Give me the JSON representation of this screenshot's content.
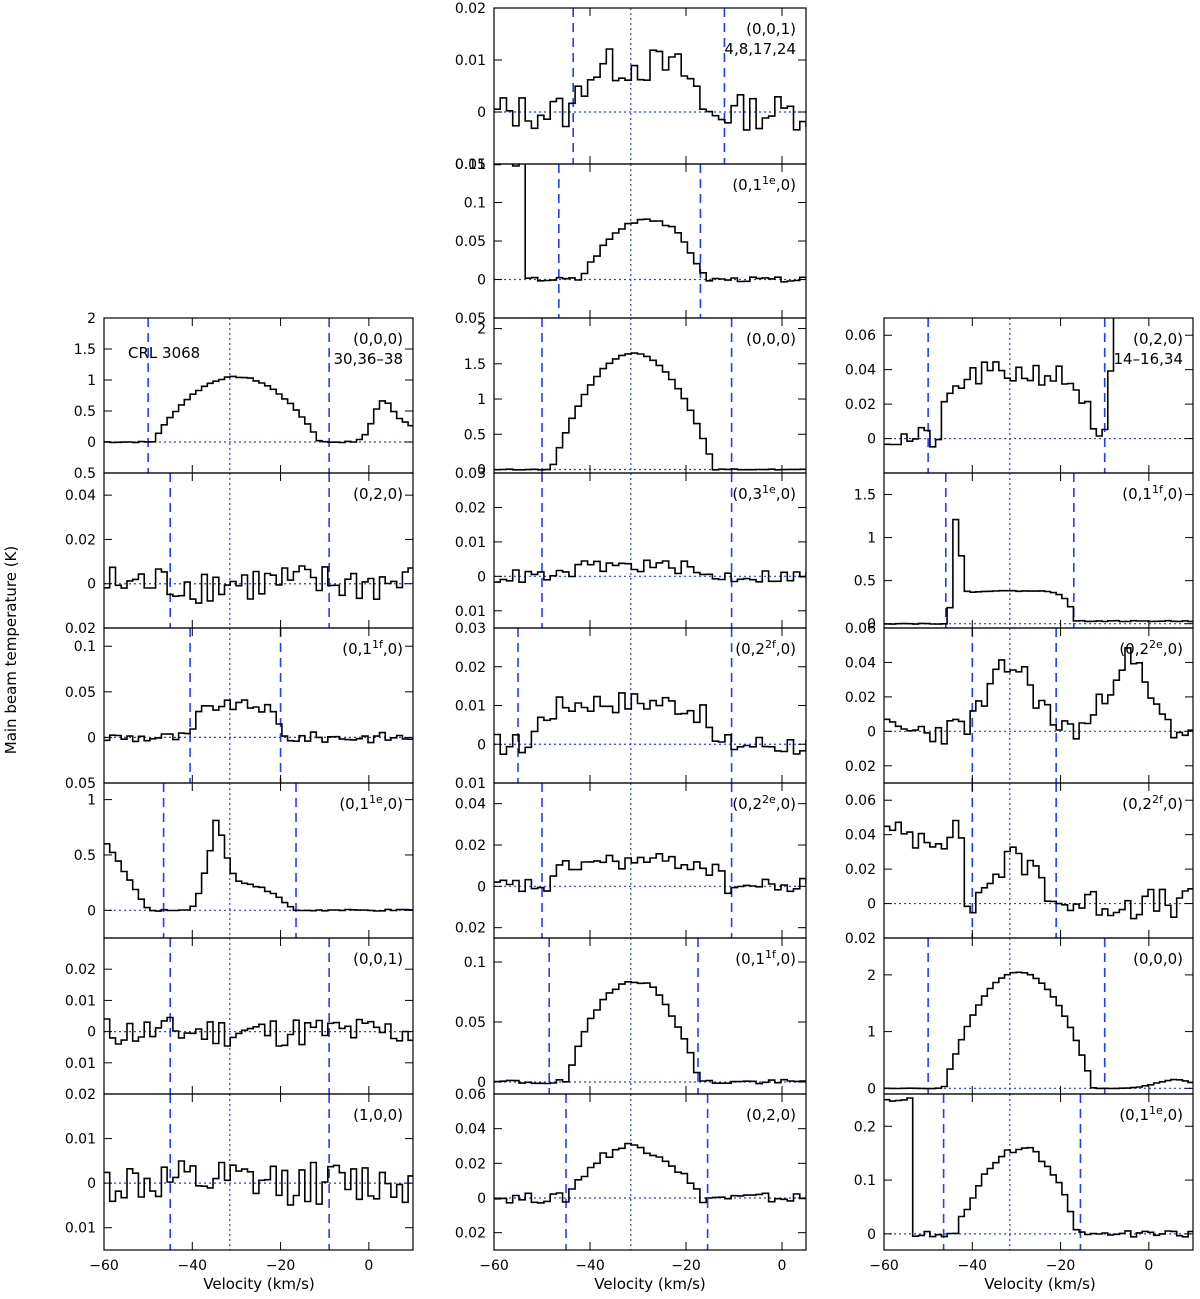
{
  "figure": {
    "ylabel": "Main beam temperature (K)",
    "xlabel": "Velocity (km/s)"
  },
  "colors": {
    "marker": "#1f3fff",
    "spectrum": "#000000"
  },
  "chart_data": [
    {
      "type": "line",
      "column": 1,
      "row": 0,
      "label": "(0,0,0)",
      "sublabel": "30,36–38",
      "source": "CRL 3068",
      "xlim": [
        -60,
        10
      ],
      "ylim": [
        -0.5,
        2
      ],
      "yticks": [
        -0.5,
        0,
        0.5,
        1,
        1.5,
        2
      ],
      "xticks": [],
      "dashed_x": [
        -50,
        -9
      ],
      "dotted_x": -31.5,
      "shape": {
        "kind": "para",
        "center": -30,
        "halfwidth": 19,
        "peak": 1.05,
        "noise": 0.01,
        "extra": [
          {
            "center": 3,
            "width": 3,
            "amp": 0.6
          },
          {
            "center": 8,
            "width": 4,
            "amp": 0.3
          }
        ]
      }
    },
    {
      "type": "line",
      "column": 1,
      "row": 1,
      "label": "(0,2,0)",
      "xlim": [
        -60,
        10
      ],
      "ylim": [
        -0.02,
        0.05
      ],
      "yticks": [
        -0.02,
        0,
        0.02,
        0.04
      ],
      "xticks": [],
      "dashed_x": [
        -45,
        -9
      ],
      "dotted_x": -31.5,
      "shape": {
        "kind": "noise",
        "noise": 0.009,
        "peak": 0.005,
        "center": -30,
        "halfwidth": 15
      }
    },
    {
      "type": "line",
      "column": 1,
      "row": 2,
      "label": "(0,1^1f,0)",
      "xlim": [
        -60,
        10
      ],
      "ylim": [
        -0.05,
        0.12
      ],
      "yticks": [
        -0.05,
        0,
        0.05,
        0.1
      ],
      "xticks": [],
      "dashed_x": [
        -40.5,
        -20
      ],
      "dotted_x": -31.5,
      "shape": {
        "kind": "flat",
        "center": -30,
        "halfwidth": 10,
        "peak": 0.035,
        "noise": 0.006
      }
    },
    {
      "type": "line",
      "column": 1,
      "row": 3,
      "label": "(0,1^1e,0)",
      "xlim": [
        -60,
        10
      ],
      "ylim": [
        -0.25,
        1.15
      ],
      "yticks": [
        0,
        0.5,
        1
      ],
      "xticks": [],
      "dashed_x": [
        -46.5,
        -16.5
      ],
      "dotted_x": -31.5,
      "shape": {
        "kind": "e1",
        "noise": 0.008
      }
    },
    {
      "type": "line",
      "column": 1,
      "row": 4,
      "label": "(0,0,1)",
      "xlim": [
        -60,
        10
      ],
      "ylim": [
        -0.02,
        0.03
      ],
      "yticks": [
        -0.02,
        -0.01,
        0,
        0.01,
        0.02
      ],
      "xticks": [],
      "dashed_x": [
        -45,
        -9
      ],
      "dotted_x": -31.5,
      "shape": {
        "kind": "noise",
        "noise": 0.005,
        "peak": 0.001,
        "center": -30,
        "halfwidth": 15
      }
    },
    {
      "type": "line",
      "column": 1,
      "row": 5,
      "label": "(1,0,0)",
      "xlim": [
        -60,
        10
      ],
      "ylim": [
        -0.015,
        0.02
      ],
      "yticks": [
        -0.01,
        0,
        0.01
      ],
      "xticks": [
        -60,
        -40,
        -20,
        0
      ],
      "dashed_x": [
        -45,
        -9
      ],
      "dotted_x": -31.5,
      "shape": {
        "kind": "noise",
        "noise": 0.005,
        "peak": 0.0,
        "center": -30,
        "halfwidth": 15
      }
    },
    {
      "type": "line",
      "column": 2,
      "row": 0,
      "label": "(0,0,1)",
      "sublabel": "4,8,17,24",
      "xlim": [
        -60,
        5
      ],
      "ylim": [
        -0.01,
        0.02
      ],
      "yticks": [
        -0.01,
        0,
        0.01,
        0.02
      ],
      "xticks": [],
      "dashed_x": [
        -43.5,
        -12
      ],
      "dotted_x": -31.5,
      "shape": {
        "kind": "flat",
        "center": -30,
        "halfwidth": 13,
        "peak": 0.009,
        "noise": 0.0035
      }
    },
    {
      "type": "line",
      "column": 2,
      "row": 1,
      "label": "(0,1^1e,0)",
      "xlim": [
        -60,
        5
      ],
      "ylim": [
        -0.05,
        0.15
      ],
      "yticks": [
        -0.05,
        0,
        0.05,
        0.1,
        0.15
      ],
      "xticks": [],
      "dashed_x": [
        -46.5,
        -17
      ],
      "dotted_x": -31.5,
      "shape": {
        "kind": "rise",
        "center": -29,
        "halfwidth": 13,
        "peak": 0.09,
        "noise": 0.003,
        "edge": -54,
        "edgeval": 0.15
      }
    },
    {
      "type": "line",
      "column": 2,
      "row": 2,
      "label": "(0,0,0)",
      "xlim": [
        -60,
        5
      ],
      "ylim": [
        -0.05,
        2.15
      ],
      "yticks": [
        0,
        0.5,
        1,
        1.5,
        2
      ],
      "xticks": [],
      "dashed_x": [
        -50,
        -10.5
      ],
      "dotted_x": -31.5,
      "shape": {
        "kind": "para",
        "center": -31,
        "halfwidth": 17,
        "peak": 1.65,
        "noise": 0.005,
        "extra": []
      }
    },
    {
      "type": "line",
      "column": 2,
      "row": 3,
      "label": "(0,3^1e,0)",
      "xlim": [
        -60,
        5
      ],
      "ylim": [
        -0.015,
        0.03
      ],
      "yticks": [
        -0.01,
        0,
        0.01,
        0.02,
        0.03
      ],
      "xticks": [],
      "dashed_x": [
        -50,
        -10.5
      ],
      "dotted_x": -31.5,
      "shape": {
        "kind": "flat",
        "center": -31,
        "halfwidth": 14,
        "peak": 0.003,
        "noise": 0.002
      }
    },
    {
      "type": "line",
      "column": 2,
      "row": 4,
      "label": "(0,2^2f,0)",
      "xlim": [
        -60,
        5
      ],
      "ylim": [
        -0.01,
        0.03
      ],
      "yticks": [
        -0.01,
        0,
        0.01,
        0.02,
        0.03
      ],
      "xticks": [],
      "dashed_x": [
        -55,
        -10.5
      ],
      "dotted_x": -31.5,
      "shape": {
        "kind": "flat",
        "center": -33,
        "halfwidth": 19,
        "peak": 0.011,
        "noise": 0.003
      }
    },
    {
      "type": "line",
      "column": 2,
      "row": 5,
      "label": "(0,2^2e,0)",
      "xlim": [
        -60,
        5
      ],
      "ylim": [
        -0.025,
        0.05
      ],
      "yticks": [
        -0.02,
        0,
        0.02,
        0.04
      ],
      "xticks": [],
      "dashed_x": [
        -50,
        -10.5
      ],
      "dotted_x": -31.5,
      "shape": {
        "kind": "flat",
        "center": -30,
        "halfwidth": 18,
        "peak": 0.012,
        "noise": 0.004
      }
    },
    {
      "type": "line",
      "column": 2,
      "row": 6,
      "label": "(0,1^1f,0)",
      "xlim": [
        -60,
        5
      ],
      "ylim": [
        -0.01,
        0.12
      ],
      "yticks": [
        0,
        0.05,
        0.1
      ],
      "xticks": [],
      "dashed_x": [
        -48.5,
        -17.5
      ],
      "dotted_x": -31.5,
      "shape": {
        "kind": "para",
        "center": -31,
        "halfwidth": 14,
        "peak": 0.085,
        "noise": 0.002,
        "extra": []
      }
    },
    {
      "type": "line",
      "column": 2,
      "row": 7,
      "label": "(0,2,0)",
      "xlim": [
        -60,
        5
      ],
      "ylim": [
        -0.03,
        0.06
      ],
      "yticks": [
        -0.02,
        0,
        0.02,
        0.04,
        0.06
      ],
      "xticks": [
        -60,
        -40,
        -20,
        0
      ],
      "dashed_x": [
        -45,
        -15.5
      ],
      "dotted_x": -31.5,
      "shape": {
        "kind": "para",
        "center": -31,
        "halfwidth": 14,
        "peak": 0.03,
        "noise": 0.003,
        "extra": []
      }
    },
    {
      "type": "line",
      "column": 3,
      "row": 0,
      "label": "(0,2,0)",
      "sublabel": "14–16,34",
      "xlim": [
        -60,
        10
      ],
      "ylim": [
        -0.02,
        0.07
      ],
      "yticks": [
        0,
        0.02,
        0.04,
        0.06
      ],
      "xticks": [],
      "dashed_x": [
        -50,
        -10
      ],
      "dotted_x": -31.5,
      "shape": {
        "kind": "flat",
        "center": -30,
        "halfwidth": 17,
        "peak": 0.038,
        "noise": 0.007,
        "tail": {
          "from": -9,
          "amp": 0.1
        }
      }
    },
    {
      "type": "line",
      "column": 3,
      "row": 1,
      "label": "(0,1^1f,0)",
      "xlim": [
        -60,
        10
      ],
      "ylim": [
        -0.05,
        1.75
      ],
      "yticks": [
        0,
        0.5,
        1,
        1.5
      ],
      "xticks": [],
      "dashed_x": [
        -46,
        -17
      ],
      "dotted_x": -31.5,
      "shape": {
        "kind": "f1",
        "noise": 0.005
      }
    },
    {
      "type": "line",
      "column": 3,
      "row": 2,
      "label": "(0,2^2e,0)",
      "xlim": [
        -60,
        10
      ],
      "ylim": [
        -0.03,
        0.06
      ],
      "yticks": [
        -0.02,
        0,
        0.02,
        0.04,
        0.06
      ],
      "xticks": [],
      "dashed_x": [
        -40,
        -21
      ],
      "dotted_x": -31.5,
      "shape": {
        "kind": "twin",
        "noise": 0.008
      }
    },
    {
      "type": "line",
      "column": 3,
      "row": 3,
      "label": "(0,2^2f,0)",
      "xlim": [
        -60,
        10
      ],
      "ylim": [
        -0.02,
        0.07
      ],
      "yticks": [
        -0.02,
        0,
        0.02,
        0.04,
        0.06
      ],
      "xticks": [],
      "dashed_x": [
        -40,
        -21
      ],
      "dotted_x": -31.5,
      "shape": {
        "kind": "drop",
        "noise": 0.009
      }
    },
    {
      "type": "line",
      "column": 3,
      "row": 4,
      "label": "(0,0,0)",
      "xlim": [
        -60,
        10
      ],
      "ylim": [
        -0.1,
        2.65
      ],
      "yticks": [
        0,
        1,
        2
      ],
      "xticks": [],
      "dashed_x": [
        -50,
        -10
      ],
      "dotted_x": -31.5,
      "shape": {
        "kind": "para",
        "center": -29.5,
        "halfwidth": 17,
        "peak": 2.05,
        "noise": 0.005,
        "extra": [
          {
            "center": 6,
            "width": 6,
            "amp": 0.15
          }
        ]
      }
    },
    {
      "type": "line",
      "column": 3,
      "row": 5,
      "label": "(0,1^1e,0)",
      "xlim": [
        -60,
        10
      ],
      "ylim": [
        -0.03,
        0.26
      ],
      "yticks": [
        0,
        0.1,
        0.2
      ],
      "xticks": [
        -60,
        -40,
        -20,
        0
      ],
      "dashed_x": [
        -46.5,
        -15.5
      ],
      "dotted_x": -31.5,
      "shape": {
        "kind": "rise",
        "center": -30,
        "halfwidth": 14,
        "peak": 0.18,
        "noise": 0.006,
        "edge": -54,
        "edgeval": 0.25
      }
    }
  ]
}
